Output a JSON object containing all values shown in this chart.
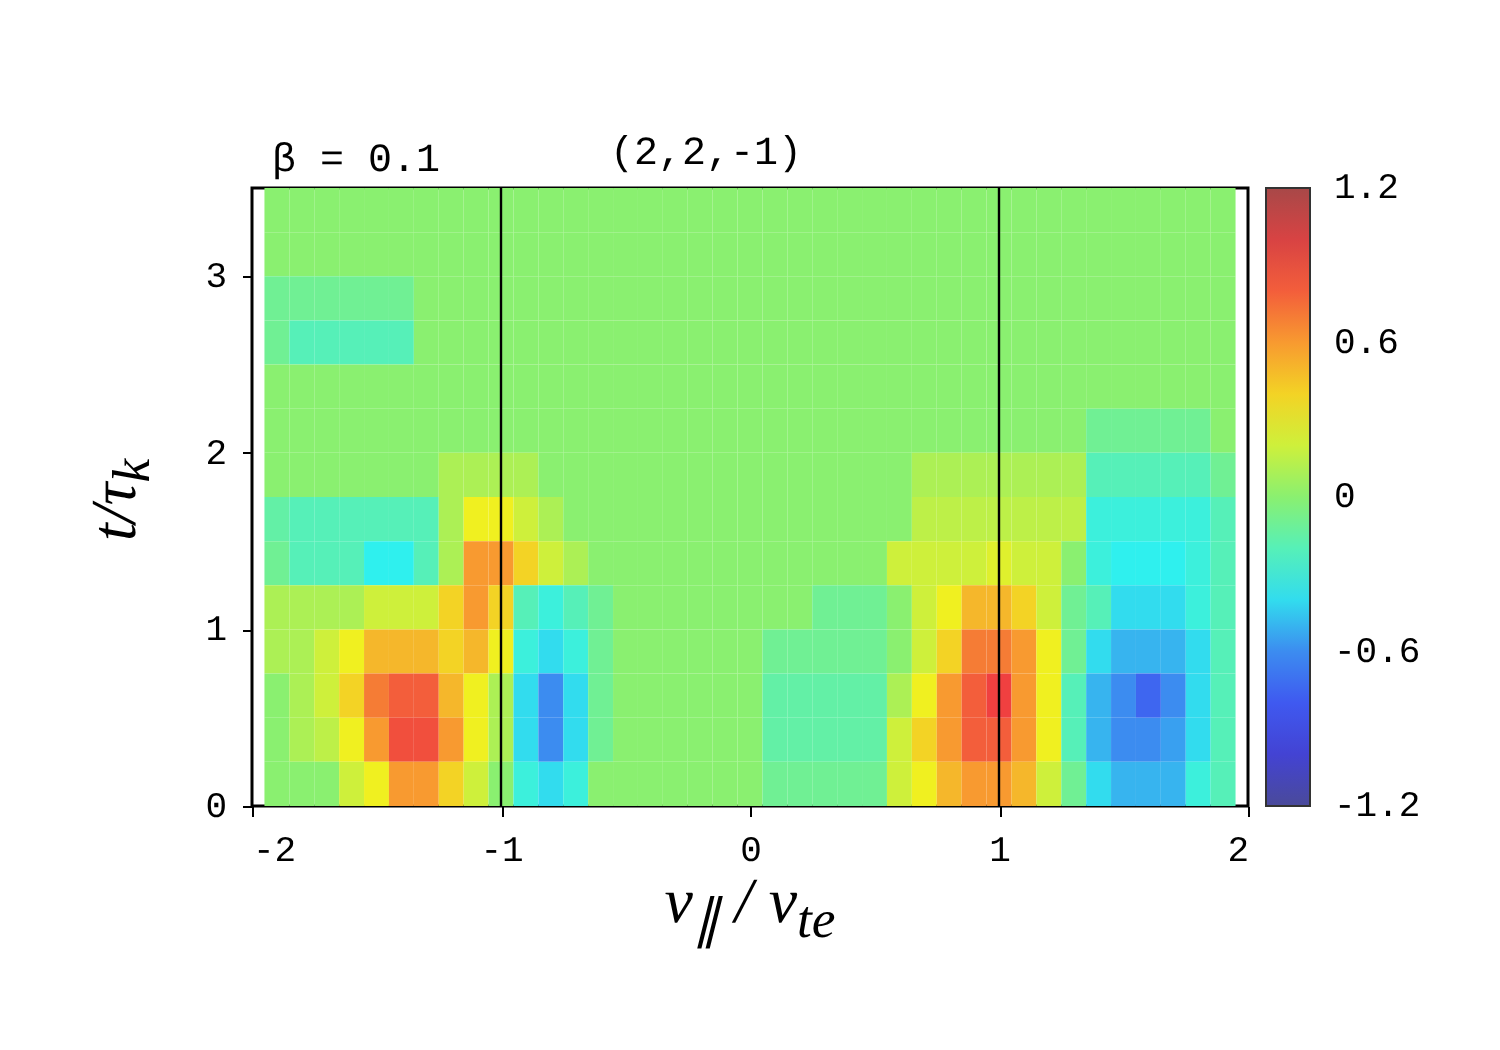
{
  "chart_data": {
    "type": "heatmap",
    "title": "β = 0.1",
    "annotations": [
      "(2,2,-1)"
    ],
    "xlabel": "v$_{∥}$ / v$_{te}$",
    "ylabel": "t/τ$_{k}$",
    "x": [
      -1.9,
      -1.8,
      -1.7,
      -1.6,
      -1.5,
      -1.4,
      -1.3,
      -1.2,
      -1.1,
      -1.0,
      -0.9,
      -0.8,
      -0.7,
      -0.6,
      -0.5,
      -0.4,
      -0.3,
      -0.2,
      -0.1,
      0,
      0.1,
      0.2,
      0.3,
      0.4,
      0.5,
      0.6,
      0.7,
      0.8,
      0.9,
      1.0,
      1.1,
      1.2,
      1.3,
      1.4,
      1.5,
      1.6,
      1.7,
      1.8,
      1.9
    ],
    "y": [
      3.375,
      3.125,
      2.875,
      2.625,
      2.375,
      2.125,
      1.875,
      1.625,
      1.375,
      1.125,
      0.875,
      0.625,
      0.375,
      0.125
    ],
    "cells": [
      [
        0,
        0,
        0,
        0,
        0,
        0,
        0,
        0,
        0,
        0,
        0,
        0,
        0,
        0,
        0,
        0,
        0,
        0,
        0,
        0,
        0,
        0,
        0,
        0,
        0,
        0,
        0,
        0,
        0,
        0,
        0,
        0,
        0,
        0,
        0,
        0,
        0,
        0,
        0
      ],
      [
        0,
        0,
        0,
        0,
        0,
        0,
        0,
        0,
        0,
        0,
        0,
        0,
        0,
        0,
        0,
        0,
        0,
        0,
        0,
        0,
        0,
        0,
        0,
        0,
        0,
        0,
        0,
        0,
        0,
        0,
        0,
        0,
        0,
        0,
        0,
        0,
        0,
        0,
        0
      ],
      [
        -0.1,
        -0.1,
        -0.1,
        -0.1,
        -0.1,
        -0.1,
        0,
        0,
        0,
        0,
        0,
        0,
        0,
        0,
        0,
        0,
        0,
        0,
        0,
        0,
        0,
        0,
        0,
        0,
        0,
        0,
        0,
        0,
        0,
        0,
        0,
        0,
        0,
        0,
        0,
        0,
        0,
        0,
        0
      ],
      [
        -0.1,
        -0.2,
        -0.2,
        -0.2,
        -0.2,
        -0.2,
        0,
        0,
        0,
        0,
        0,
        0,
        0,
        0,
        0,
        0,
        0,
        0,
        0,
        0,
        0,
        0,
        0,
        0,
        0,
        0,
        0,
        0,
        0,
        0,
        0,
        0,
        0,
        0,
        0,
        0,
        0,
        0,
        0
      ],
      [
        0,
        0,
        0,
        0,
        0,
        0,
        0,
        0,
        0,
        0,
        0,
        0,
        0,
        0,
        0,
        0,
        0,
        0,
        0,
        0,
        0,
        0,
        0,
        0,
        0,
        0,
        0,
        0,
        0,
        0,
        0,
        0,
        0,
        0,
        0,
        0,
        0,
        0,
        0
      ],
      [
        0,
        0,
        0,
        0,
        0,
        0,
        0,
        0,
        0,
        0,
        0,
        0,
        0,
        0,
        0,
        0,
        0,
        0,
        0,
        0,
        0,
        0,
        0,
        0,
        0,
        0,
        0,
        0,
        0,
        0,
        0,
        0,
        0,
        -0.1,
        -0.1,
        -0.1,
        -0.1,
        -0.1,
        0
      ],
      [
        0,
        0,
        0,
        0,
        0,
        0,
        0,
        0.1,
        0.1,
        0.1,
        0.1,
        0,
        0,
        0,
        0,
        0,
        0,
        0,
        0,
        0,
        0,
        0,
        0,
        0,
        0,
        0,
        0.1,
        0.1,
        0.1,
        0.1,
        0.1,
        0.1,
        0.1,
        -0.2,
        -0.2,
        -0.2,
        -0.2,
        -0.2,
        -0.1
      ],
      [
        -0.15,
        -0.2,
        -0.2,
        -0.2,
        -0.2,
        -0.2,
        -0.2,
        0.1,
        0.3,
        0.3,
        0.2,
        0.1,
        0,
        0,
        0,
        0,
        0,
        0,
        0,
        0,
        0,
        0,
        0,
        0,
        0,
        0,
        0.15,
        0.15,
        0.15,
        0.15,
        0.15,
        0.15,
        0.15,
        -0.3,
        -0.3,
        -0.3,
        -0.3,
        -0.3,
        -0.2
      ],
      [
        -0.1,
        -0.2,
        -0.2,
        -0.2,
        -0.35,
        -0.35,
        -0.2,
        0.1,
        0.6,
        0.6,
        0.4,
        0.2,
        0.1,
        0,
        0,
        0,
        0,
        0,
        0,
        0,
        0,
        0,
        0,
        0,
        0,
        0.2,
        0.2,
        0.2,
        0.2,
        0.25,
        0.2,
        0.2,
        0,
        -0.3,
        -0.35,
        -0.35,
        -0.35,
        -0.3,
        -0.2
      ],
      [
        0.1,
        0.1,
        0.1,
        0.1,
        0.2,
        0.2,
        0.2,
        0.4,
        0.6,
        0.4,
        -0.2,
        -0.3,
        -0.2,
        -0.1,
        0,
        0,
        0,
        0,
        0,
        0,
        0,
        0,
        -0.1,
        -0.1,
        -0.1,
        0,
        0.2,
        0.3,
        0.5,
        0.5,
        0.4,
        0.2,
        -0.1,
        -0.2,
        -0.4,
        -0.4,
        -0.4,
        -0.3,
        -0.2
      ],
      [
        0.1,
        0.1,
        0.2,
        0.3,
        0.5,
        0.5,
        0.5,
        0.4,
        0.5,
        0.3,
        -0.3,
        -0.4,
        -0.3,
        -0.1,
        0,
        0,
        0,
        0,
        0,
        0,
        -0.1,
        -0.1,
        -0.1,
        -0.1,
        -0.1,
        0,
        0.2,
        0.4,
        0.7,
        0.7,
        0.6,
        0.3,
        -0.1,
        -0.4,
        -0.5,
        -0.5,
        -0.5,
        -0.4,
        -0.2
      ],
      [
        0,
        0.1,
        0.2,
        0.4,
        0.7,
        0.8,
        0.8,
        0.5,
        0.3,
        0.1,
        -0.4,
        -0.6,
        -0.4,
        -0.1,
        0,
        0,
        0,
        0,
        0,
        0,
        -0.15,
        -0.15,
        -0.15,
        -0.15,
        -0.15,
        0.1,
        0.3,
        0.6,
        0.8,
        0.9,
        0.6,
        0.3,
        -0.2,
        -0.5,
        -0.6,
        -0.75,
        -0.6,
        -0.4,
        -0.2
      ],
      [
        0,
        0.1,
        0.15,
        0.3,
        0.6,
        0.85,
        0.85,
        0.6,
        0.3,
        0.1,
        -0.4,
        -0.6,
        -0.4,
        -0.1,
        0,
        0,
        0,
        0,
        0,
        0,
        -0.15,
        -0.15,
        -0.15,
        -0.15,
        -0.15,
        0.2,
        0.4,
        0.6,
        0.8,
        0.8,
        0.6,
        0.3,
        -0.2,
        -0.5,
        -0.6,
        -0.6,
        -0.55,
        -0.4,
        -0.2
      ],
      [
        0,
        0,
        0,
        0.2,
        0.3,
        0.6,
        0.6,
        0.4,
        0.2,
        0,
        -0.3,
        -0.4,
        -0.3,
        0,
        0,
        0,
        0,
        0,
        0,
        0,
        -0.1,
        -0.1,
        -0.1,
        -0.1,
        -0.1,
        0.2,
        0.3,
        0.5,
        0.6,
        0.6,
        0.5,
        0.2,
        -0.1,
        -0.4,
        -0.5,
        -0.5,
        -0.5,
        -0.3,
        -0.2
      ]
    ],
    "xlim": [
      -2,
      2
    ],
    "xticks": [
      -2,
      -1,
      0,
      1,
      2
    ],
    "ylim": [
      0,
      3.5
    ],
    "yticks": [
      0,
      1,
      2,
      3
    ],
    "clim": [
      -1.2,
      1.2
    ],
    "cticks": [
      -1.2,
      -0.6,
      0,
      0.6,
      1.2
    ],
    "ref_lines": [
      {
        "axis": "x",
        "value": -1,
        "color": "#000000"
      },
      {
        "axis": "x",
        "value": 1,
        "color": "#000000"
      }
    ],
    "grid": false
  }
}
